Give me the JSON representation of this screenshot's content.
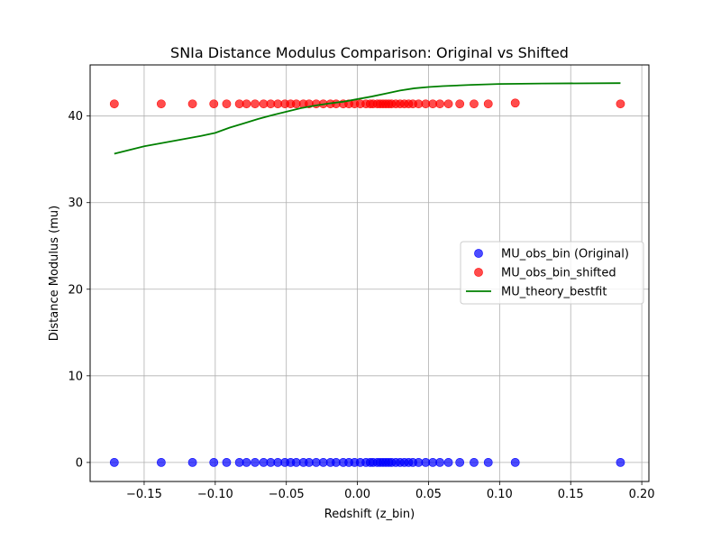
{
  "chart_data": {
    "type": "scatter",
    "title": "SNIa Distance Modulus Comparison: Original vs Shifted",
    "xlabel": "Redshift (z_bin)",
    "ylabel": "Distance Modulus (mu)",
    "xlim": [
      -0.188,
      0.205
    ],
    "ylim": [
      -2.2,
      45.9
    ],
    "xticks": [
      -0.15,
      -0.1,
      -0.05,
      0.0,
      0.05,
      0.1,
      0.15,
      0.2
    ],
    "xtick_labels": [
      "−0.15",
      "−0.10",
      "−0.05",
      "0.00",
      "0.05",
      "0.10",
      "0.15",
      "0.20"
    ],
    "yticks": [
      0,
      10,
      20,
      30,
      40
    ],
    "ytick_labels": [
      "0",
      "10",
      "20",
      "30",
      "40"
    ],
    "grid": true,
    "legend_position": "center-right",
    "series": [
      {
        "name": "MU_obs_bin (Original)",
        "kind": "scatter",
        "color": "#0000ff",
        "points": [
          {
            "x": -0.171,
            "y": 0.0
          },
          {
            "x": -0.138,
            "y": 0.0
          },
          {
            "x": -0.116,
            "y": 0.0
          },
          {
            "x": -0.101,
            "y": 0.0
          },
          {
            "x": -0.092,
            "y": 0.0
          },
          {
            "x": -0.083,
            "y": 0.0
          },
          {
            "x": -0.078,
            "y": 0.0
          },
          {
            "x": -0.072,
            "y": 0.0
          },
          {
            "x": -0.066,
            "y": 0.0
          },
          {
            "x": -0.061,
            "y": 0.0
          },
          {
            "x": -0.056,
            "y": 0.0
          },
          {
            "x": -0.051,
            "y": 0.0
          },
          {
            "x": -0.047,
            "y": 0.0
          },
          {
            "x": -0.043,
            "y": 0.0
          },
          {
            "x": -0.038,
            "y": 0.0
          },
          {
            "x": -0.034,
            "y": 0.0
          },
          {
            "x": -0.029,
            "y": 0.0
          },
          {
            "x": -0.024,
            "y": 0.0
          },
          {
            "x": -0.019,
            "y": 0.0
          },
          {
            "x": -0.015,
            "y": 0.0
          },
          {
            "x": -0.01,
            "y": 0.0
          },
          {
            "x": -0.006,
            "y": 0.0
          },
          {
            "x": -0.002,
            "y": 0.0
          },
          {
            "x": 0.002,
            "y": 0.0
          },
          {
            "x": 0.006,
            "y": 0.0
          },
          {
            "x": 0.009,
            "y": 0.0
          },
          {
            "x": 0.011,
            "y": 0.0
          },
          {
            "x": 0.014,
            "y": 0.0
          },
          {
            "x": 0.016,
            "y": 0.0
          },
          {
            "x": 0.018,
            "y": 0.0
          },
          {
            "x": 0.02,
            "y": 0.0
          },
          {
            "x": 0.022,
            "y": 0.0
          },
          {
            "x": 0.024,
            "y": 0.0
          },
          {
            "x": 0.027,
            "y": 0.0
          },
          {
            "x": 0.03,
            "y": 0.0
          },
          {
            "x": 0.033,
            "y": 0.0
          },
          {
            "x": 0.036,
            "y": 0.0
          },
          {
            "x": 0.039,
            "y": 0.0
          },
          {
            "x": 0.043,
            "y": 0.0
          },
          {
            "x": 0.048,
            "y": 0.0
          },
          {
            "x": 0.053,
            "y": 0.0
          },
          {
            "x": 0.058,
            "y": 0.0
          },
          {
            "x": 0.064,
            "y": 0.0
          },
          {
            "x": 0.072,
            "y": 0.0
          },
          {
            "x": 0.082,
            "y": 0.0
          },
          {
            "x": 0.092,
            "y": 0.0
          },
          {
            "x": 0.111,
            "y": 0.0
          },
          {
            "x": 0.185,
            "y": 0.0
          }
        ]
      },
      {
        "name": "MU_obs_bin_shifted",
        "kind": "scatter",
        "color": "#ff0000",
        "points": [
          {
            "x": -0.171,
            "y": 41.4
          },
          {
            "x": -0.138,
            "y": 41.4
          },
          {
            "x": -0.116,
            "y": 41.4
          },
          {
            "x": -0.101,
            "y": 41.4
          },
          {
            "x": -0.092,
            "y": 41.4
          },
          {
            "x": -0.083,
            "y": 41.4
          },
          {
            "x": -0.078,
            "y": 41.4
          },
          {
            "x": -0.072,
            "y": 41.4
          },
          {
            "x": -0.066,
            "y": 41.4
          },
          {
            "x": -0.061,
            "y": 41.4
          },
          {
            "x": -0.056,
            "y": 41.4
          },
          {
            "x": -0.051,
            "y": 41.4
          },
          {
            "x": -0.047,
            "y": 41.4
          },
          {
            "x": -0.043,
            "y": 41.4
          },
          {
            "x": -0.038,
            "y": 41.4
          },
          {
            "x": -0.034,
            "y": 41.4
          },
          {
            "x": -0.029,
            "y": 41.4
          },
          {
            "x": -0.024,
            "y": 41.4
          },
          {
            "x": -0.019,
            "y": 41.4
          },
          {
            "x": -0.015,
            "y": 41.4
          },
          {
            "x": -0.01,
            "y": 41.4
          },
          {
            "x": -0.006,
            "y": 41.4
          },
          {
            "x": -0.002,
            "y": 41.4
          },
          {
            "x": 0.002,
            "y": 41.4
          },
          {
            "x": 0.006,
            "y": 41.4
          },
          {
            "x": 0.009,
            "y": 41.4
          },
          {
            "x": 0.011,
            "y": 41.4
          },
          {
            "x": 0.014,
            "y": 41.4
          },
          {
            "x": 0.016,
            "y": 41.4
          },
          {
            "x": 0.018,
            "y": 41.4
          },
          {
            "x": 0.02,
            "y": 41.4
          },
          {
            "x": 0.022,
            "y": 41.4
          },
          {
            "x": 0.024,
            "y": 41.4
          },
          {
            "x": 0.027,
            "y": 41.4
          },
          {
            "x": 0.03,
            "y": 41.4
          },
          {
            "x": 0.033,
            "y": 41.4
          },
          {
            "x": 0.036,
            "y": 41.4
          },
          {
            "x": 0.039,
            "y": 41.4
          },
          {
            "x": 0.043,
            "y": 41.4
          },
          {
            "x": 0.048,
            "y": 41.4
          },
          {
            "x": 0.053,
            "y": 41.4
          },
          {
            "x": 0.058,
            "y": 41.4
          },
          {
            "x": 0.064,
            "y": 41.4
          },
          {
            "x": 0.072,
            "y": 41.4
          },
          {
            "x": 0.082,
            "y": 41.4
          },
          {
            "x": 0.092,
            "y": 41.4
          },
          {
            "x": 0.111,
            "y": 41.5
          },
          {
            "x": 0.185,
            "y": 41.4
          }
        ]
      },
      {
        "name": "MU_theory_bestfit",
        "kind": "line",
        "color": "#008000",
        "points": [
          {
            "x": -0.171,
            "y": 35.65
          },
          {
            "x": -0.15,
            "y": 36.5
          },
          {
            "x": -0.13,
            "y": 37.1
          },
          {
            "x": -0.11,
            "y": 37.7
          },
          {
            "x": -0.1,
            "y": 38.05
          },
          {
            "x": -0.09,
            "y": 38.65
          },
          {
            "x": -0.08,
            "y": 39.15
          },
          {
            "x": -0.07,
            "y": 39.65
          },
          {
            "x": -0.06,
            "y": 40.1
          },
          {
            "x": -0.05,
            "y": 40.5
          },
          {
            "x": -0.04,
            "y": 40.9
          },
          {
            "x": -0.03,
            "y": 41.2
          },
          {
            "x": -0.02,
            "y": 41.45
          },
          {
            "x": -0.01,
            "y": 41.65
          },
          {
            "x": 0.0,
            "y": 41.95
          },
          {
            "x": 0.01,
            "y": 42.25
          },
          {
            "x": 0.02,
            "y": 42.6
          },
          {
            "x": 0.03,
            "y": 42.95
          },
          {
            "x": 0.04,
            "y": 43.2
          },
          {
            "x": 0.05,
            "y": 43.35
          },
          {
            "x": 0.06,
            "y": 43.45
          },
          {
            "x": 0.08,
            "y": 43.6
          },
          {
            "x": 0.1,
            "y": 43.7
          },
          {
            "x": 0.13,
            "y": 43.75
          },
          {
            "x": 0.185,
            "y": 43.8
          }
        ]
      }
    ]
  }
}
